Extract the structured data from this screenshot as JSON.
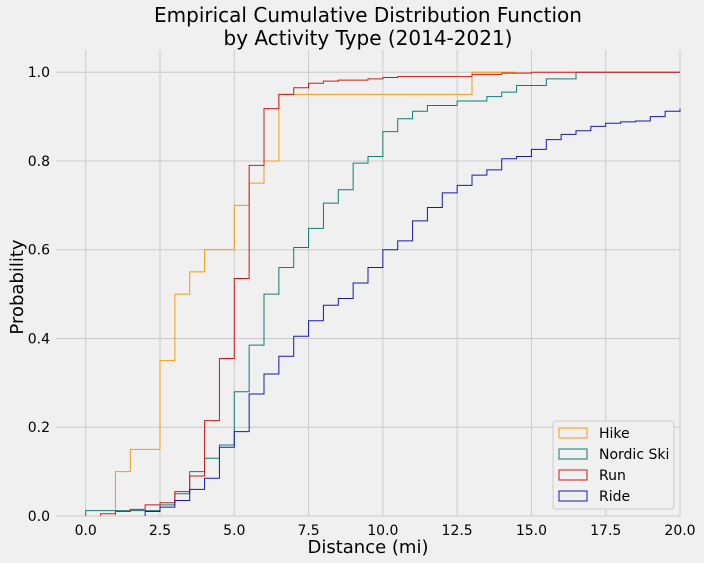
{
  "chart_data": {
    "type": "line",
    "subtype": "step-ecdf",
    "title_line1": "Empirical Cumulative Distribution Function",
    "title_line2": "by Activity Type (2014-2021)",
    "xlabel": "Distance (mi)",
    "ylabel": "Probability",
    "xlim": [
      -1.0,
      20.0
    ],
    "ylim": [
      0,
      1.05
    ],
    "xticks": [
      "0.0",
      "2.5",
      "5.0",
      "7.5",
      "10.0",
      "12.5",
      "15.0",
      "17.5",
      "20.0"
    ],
    "yticks": [
      "0.0",
      "0.2",
      "0.4",
      "0.6",
      "0.8",
      "1.0"
    ],
    "grid": true,
    "legend_position": "lower-right",
    "series": [
      {
        "name": "Hike",
        "color": "#f39c12",
        "points": [
          [
            1.0,
            0.0
          ],
          [
            1.0,
            0.1
          ],
          [
            1.5,
            0.15
          ],
          [
            2.5,
            0.35
          ],
          [
            3.0,
            0.5
          ],
          [
            3.5,
            0.55
          ],
          [
            4.0,
            0.6
          ],
          [
            5.0,
            0.7
          ],
          [
            5.5,
            0.75
          ],
          [
            6.0,
            0.8
          ],
          [
            6.5,
            0.95
          ],
          [
            13.0,
            1.0
          ],
          [
            14.5,
            1.0
          ]
        ]
      },
      {
        "name": "Nordic Ski",
        "color": "#137d74",
        "points": [
          [
            0.0,
            0.0
          ],
          [
            0.0,
            0.012
          ],
          [
            2.5,
            0.025
          ],
          [
            3.0,
            0.05
          ],
          [
            3.5,
            0.1
          ],
          [
            4.0,
            0.13
          ],
          [
            4.5,
            0.16
          ],
          [
            5.0,
            0.28
          ],
          [
            5.5,
            0.385
          ],
          [
            6.0,
            0.5
          ],
          [
            6.5,
            0.56
          ],
          [
            7.0,
            0.605
          ],
          [
            7.5,
            0.648
          ],
          [
            8.0,
            0.705
          ],
          [
            8.5,
            0.735
          ],
          [
            9.0,
            0.795
          ],
          [
            9.5,
            0.81
          ],
          [
            10.0,
            0.866
          ],
          [
            10.5,
            0.895
          ],
          [
            11.0,
            0.912
          ],
          [
            11.5,
            0.925
          ],
          [
            12.5,
            0.935
          ],
          [
            13.5,
            0.945
          ],
          [
            14.0,
            0.955
          ],
          [
            14.5,
            0.97
          ],
          [
            15.5,
            0.985
          ],
          [
            16.5,
            1.0
          ],
          [
            20.0,
            1.0
          ]
        ]
      },
      {
        "name": "Run",
        "color": "#cc1a1a",
        "points": [
          [
            0.5,
            0.0
          ],
          [
            0.5,
            0.005
          ],
          [
            1.0,
            0.01
          ],
          [
            1.5,
            0.015
          ],
          [
            2.0,
            0.025
          ],
          [
            2.5,
            0.03
          ],
          [
            3.0,
            0.055
          ],
          [
            3.5,
            0.09
          ],
          [
            4.0,
            0.215
          ],
          [
            4.5,
            0.355
          ],
          [
            5.0,
            0.535
          ],
          [
            5.5,
            0.79
          ],
          [
            6.0,
            0.918
          ],
          [
            6.5,
            0.95
          ],
          [
            7.0,
            0.965
          ],
          [
            7.5,
            0.975
          ],
          [
            8.0,
            0.98
          ],
          [
            8.5,
            0.982
          ],
          [
            9.5,
            0.985
          ],
          [
            10.0,
            0.988
          ],
          [
            10.5,
            0.99
          ],
          [
            13.0,
            0.995
          ],
          [
            14.0,
            0.998
          ],
          [
            15.0,
            1.0
          ],
          [
            20.0,
            1.0
          ]
        ]
      },
      {
        "name": "Ride",
        "color": "#1a1aa6",
        "points": [
          [
            2.0,
            0.0
          ],
          [
            2.0,
            0.01
          ],
          [
            2.5,
            0.02
          ],
          [
            3.0,
            0.035
          ],
          [
            3.5,
            0.06
          ],
          [
            4.0,
            0.085
          ],
          [
            4.5,
            0.155
          ],
          [
            5.0,
            0.19
          ],
          [
            5.5,
            0.275
          ],
          [
            6.0,
            0.32
          ],
          [
            6.5,
            0.36
          ],
          [
            7.0,
            0.405
          ],
          [
            7.5,
            0.44
          ],
          [
            8.0,
            0.475
          ],
          [
            8.5,
            0.49
          ],
          [
            9.0,
            0.525
          ],
          [
            9.5,
            0.56
          ],
          [
            10.0,
            0.6
          ],
          [
            10.5,
            0.62
          ],
          [
            11.0,
            0.665
          ],
          [
            11.5,
            0.695
          ],
          [
            12.0,
            0.728
          ],
          [
            12.5,
            0.745
          ],
          [
            13.0,
            0.768
          ],
          [
            13.5,
            0.78
          ],
          [
            14.0,
            0.805
          ],
          [
            14.5,
            0.81
          ],
          [
            15.0,
            0.826
          ],
          [
            15.5,
            0.848
          ],
          [
            16.0,
            0.86
          ],
          [
            16.5,
            0.868
          ],
          [
            17.0,
            0.878
          ],
          [
            17.5,
            0.885
          ],
          [
            18.0,
            0.888
          ],
          [
            18.5,
            0.89
          ],
          [
            19.0,
            0.9
          ],
          [
            19.5,
            0.912
          ],
          [
            20.0,
            0.918
          ]
        ]
      }
    ]
  }
}
